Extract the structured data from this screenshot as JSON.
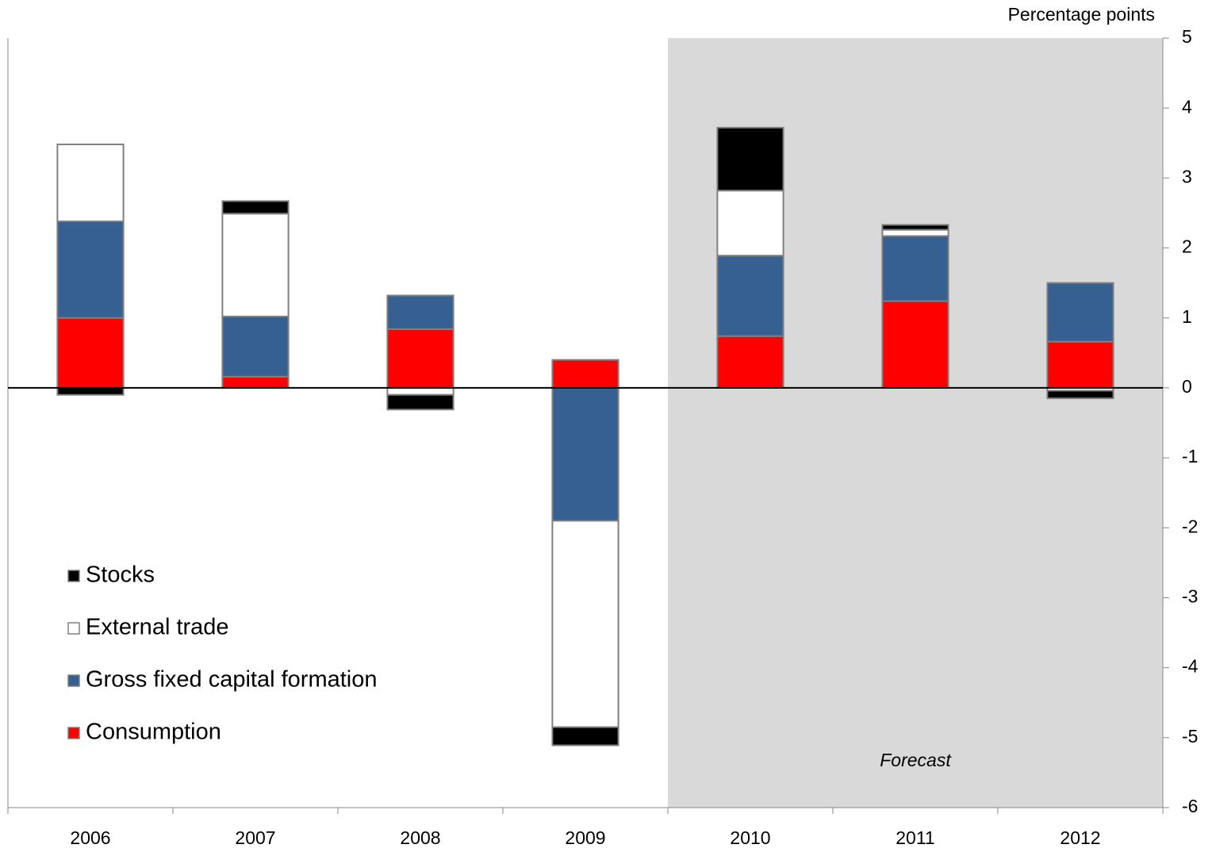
{
  "chart_data": {
    "type": "stacked_bar",
    "ylabel": "Percentage points",
    "categories": [
      "2006",
      "2007",
      "2008",
      "2009",
      "2010",
      "2011",
      "2012"
    ],
    "series": [
      {
        "name": "Consumption",
        "color": "#ff0000",
        "values": [
          1.0,
          0.16,
          0.84,
          0.4,
          0.74,
          1.24,
          0.66
        ]
      },
      {
        "name": "Gross fixed capital formation",
        "color": "#366092",
        "values": [
          1.38,
          0.86,
          0.48,
          -1.9,
          1.15,
          0.93,
          0.84
        ]
      },
      {
        "name": "External trade",
        "color": "#ffffff",
        "values": [
          1.1,
          1.47,
          -0.1,
          -2.95,
          0.93,
          0.09,
          -0.04
        ]
      },
      {
        "name": "Stocks",
        "color": "#000000",
        "values": [
          -0.1,
          0.18,
          -0.21,
          -0.26,
          0.9,
          0.07,
          -0.11
        ]
      }
    ],
    "ylim": [
      -6,
      5
    ],
    "yticks": [
      -6,
      -5,
      -4,
      -3,
      -2,
      -1,
      0,
      1,
      2,
      3,
      4,
      5
    ],
    "legend": "lower left",
    "shaded_region": {
      "from": 4,
      "label": "Forecast",
      "color": "#d9d9d9"
    }
  }
}
